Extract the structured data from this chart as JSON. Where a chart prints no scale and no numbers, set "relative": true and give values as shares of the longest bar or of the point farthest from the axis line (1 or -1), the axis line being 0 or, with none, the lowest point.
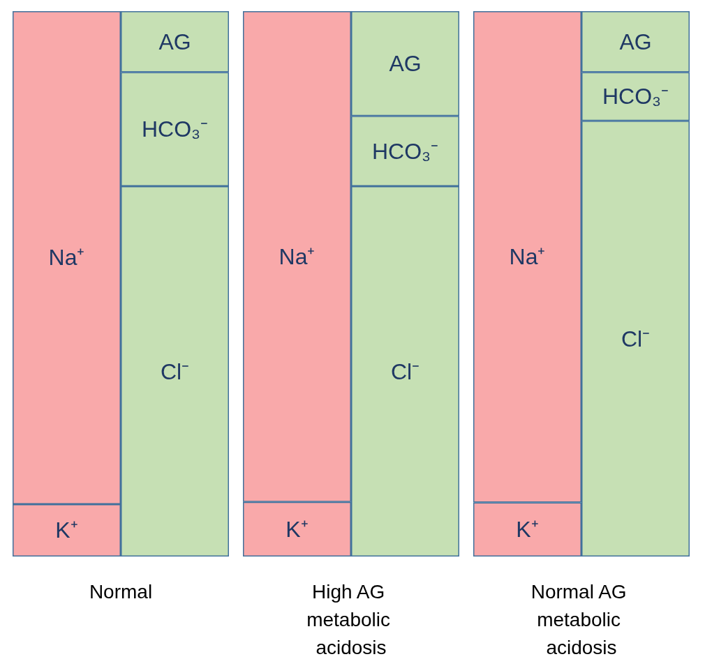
{
  "chart_data": [
    {
      "type": "bar",
      "relative": true,
      "stacked": true,
      "xlabel": "Normal",
      "categories": [
        null,
        null
      ],
      "legend": false,
      "grid": false,
      "series": [
        {
          "name": "K⁺",
          "color": "#f9a9aa",
          "values": [
            0.096,
            null
          ]
        },
        {
          "name": "Na⁺",
          "color": "#f9a9aa",
          "values": [
            0.904,
            null
          ]
        },
        {
          "name": "Cl⁻",
          "color": "#c6e0b4",
          "values": [
            null,
            0.679
          ]
        },
        {
          "name": "HCO₃⁻",
          "color": "#c6e0b4",
          "values": [
            null,
            0.209
          ]
        },
        {
          "name": "AG",
          "color": "#c6e0b4",
          "values": [
            null,
            0.112
          ]
        }
      ]
    },
    {
      "type": "bar",
      "relative": true,
      "stacked": true,
      "xlabel": "High AG metabolic acidosis",
      "categories": [
        null,
        null
      ],
      "legend": false,
      "grid": false,
      "series": [
        {
          "name": "K⁺",
          "color": "#f9a9aa",
          "values": [
            0.1,
            null
          ]
        },
        {
          "name": "Na⁺",
          "color": "#f9a9aa",
          "values": [
            0.9,
            null
          ]
        },
        {
          "name": "Cl⁻",
          "color": "#c6e0b4",
          "values": [
            null,
            0.679
          ]
        },
        {
          "name": "HCO₃⁻",
          "color": "#c6e0b4",
          "values": [
            null,
            0.129
          ]
        },
        {
          "name": "AG",
          "color": "#c6e0b4",
          "values": [
            null,
            0.192
          ]
        }
      ]
    },
    {
      "type": "bar",
      "relative": true,
      "stacked": true,
      "xlabel": "Normal AG metabolic acidosis",
      "categories": [
        null,
        null
      ],
      "legend": false,
      "grid": false,
      "series": [
        {
          "name": "K⁺",
          "color": "#f9a9aa",
          "values": [
            0.099,
            null
          ]
        },
        {
          "name": "Na⁺",
          "color": "#f9a9aa",
          "values": [
            0.901,
            null
          ]
        },
        {
          "name": "Cl⁻",
          "color": "#c6e0b4",
          "values": [
            null,
            0.799
          ]
        },
        {
          "name": "HCO₃⁻",
          "color": "#c6e0b4",
          "values": [
            null,
            0.089
          ]
        },
        {
          "name": "AG",
          "color": "#c6e0b4",
          "values": [
            null,
            0.112
          ]
        }
      ]
    }
  ]
}
